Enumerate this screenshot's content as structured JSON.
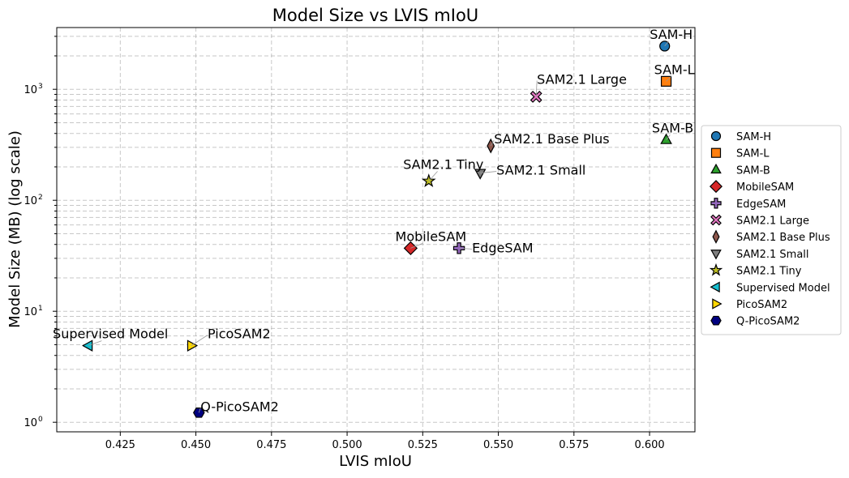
{
  "chart_data": {
    "type": "scatter",
    "title": "Model Size vs LVIS mIoU",
    "xlabel": "LVIS mIoU",
    "ylabel": "Model Size (MB) (log scale)",
    "xlim": [
      0.404,
      0.615
    ],
    "ylim": [
      0.82,
      3600
    ],
    "yscale": "log",
    "grid": true,
    "legend_position": "right, outside plot",
    "x_ticks": [
      0.425,
      0.45,
      0.475,
      0.5,
      0.525,
      0.55,
      0.575,
      0.6
    ],
    "x_tick_labels": [
      "0.425",
      "0.450",
      "0.475",
      "0.500",
      "0.525",
      "0.550",
      "0.575",
      "0.600"
    ],
    "y_ticks": [
      1,
      10,
      100,
      1000
    ],
    "y_tick_base": "10",
    "y_tick_exponents": [
      "0",
      "1",
      "2",
      "3"
    ],
    "series": [
      {
        "name": "SAM-H",
        "label": "SAM-H",
        "x": 0.605,
        "y": 2450,
        "marker": "circle",
        "color": "#1f77b4"
      },
      {
        "name": "SAM-L",
        "label": "SAM-L",
        "x": 0.6055,
        "y": 1180,
        "marker": "square",
        "color": "#ff7f0e"
      },
      {
        "name": "SAM-B",
        "label": "SAM-B",
        "x": 0.6055,
        "y": 350,
        "marker": "triangle-up",
        "color": "#2ca02c"
      },
      {
        "name": "MobileSAM",
        "label": "MobileSAM",
        "x": 0.521,
        "y": 37,
        "marker": "diamond",
        "color": "#d62728"
      },
      {
        "name": "EdgeSAM",
        "label": "EdgeSAM",
        "x": 0.537,
        "y": 37,
        "marker": "plus",
        "color": "#9467bd"
      },
      {
        "name": "SAM2.1 Large",
        "label": "SAM2.1 Large",
        "x": 0.5625,
        "y": 856,
        "marker": "x",
        "color": "#e377c2"
      },
      {
        "name": "SAM2.1 Base Plus",
        "label": "SAM2.1 Base Plus",
        "x": 0.5475,
        "y": 309,
        "marker": "thin-diamond",
        "color": "#8c564b"
      },
      {
        "name": "SAM2.1 Small",
        "label": "SAM2.1 Small",
        "x": 0.544,
        "y": 176,
        "marker": "triangle-down",
        "color": "#7f7f7f"
      },
      {
        "name": "SAM2.1 Tiny",
        "label": "SAM2.1 Tiny",
        "x": 0.527,
        "y": 149,
        "marker": "star",
        "color": "#bcbd22"
      },
      {
        "name": "Supervised Model",
        "label": "Supervised Model",
        "x": 0.4145,
        "y": 4.9,
        "marker": "triangle-left",
        "color": "#17becf"
      },
      {
        "name": "PicoSAM2",
        "label": "PicoSAM2",
        "x": 0.4485,
        "y": 4.9,
        "marker": "triangle-right",
        "color": "#ffd700"
      },
      {
        "name": "Q-PicoSAM2",
        "label": "Q-PicoSAM2",
        "x": 0.451,
        "y": 1.22,
        "marker": "hexagon",
        "color": "#000080"
      }
    ]
  }
}
